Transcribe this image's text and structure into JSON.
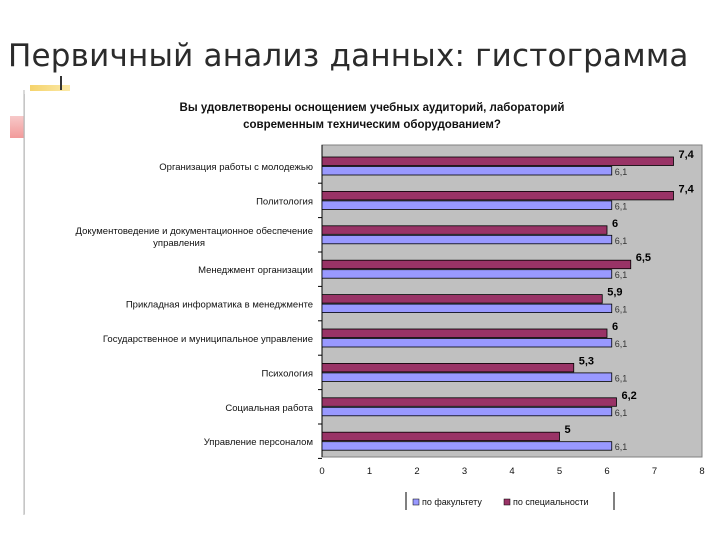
{
  "slide": {
    "title": "Первичный анализ данных: гистограмма"
  },
  "colors": {
    "plot_background": "#c0c0c0",
    "series_primary": "#9999ff",
    "series_secondary": "#993366"
  },
  "chart_data": {
    "type": "bar",
    "orientation": "horizontal",
    "title": "Вы удовлетворены оснощением учебных аудиторий, лабораторий современным техническим оборудованием?",
    "title_lines": [
      "Вы удовлетворены оснощением учебных аудиторий, лабораторий",
      "современным техническим оборудованием?"
    ],
    "categories": [
      "Организация работы с молодежью",
      "Политология",
      "Документоведение и документационное обеспечение управления",
      "Менеджмент организации",
      "Прикладная информатика в менеджменте",
      "Государственное и муниципальное управление",
      "Психология",
      "Социальная работа",
      "Управление персоналом"
    ],
    "category_lines": [
      [
        "Организация работы с молодежью"
      ],
      [
        "Политология"
      ],
      [
        "Документоведение и документационное обеспечение",
        "управления"
      ],
      [
        "Менеджмент организации"
      ],
      [
        "Прикладная информатика в менеджменте"
      ],
      [
        "Государственное и муниципальное управление"
      ],
      [
        "Психология"
      ],
      [
        "Социальная работа"
      ],
      [
        "Управление персоналом"
      ]
    ],
    "series": [
      {
        "name": "по специальности",
        "color": "#993366",
        "values": [
          7.4,
          7.4,
          6,
          6.5,
          5.9,
          6,
          5.3,
          6.2,
          5
        ],
        "labels": [
          "7,4",
          "7,4",
          "6",
          "6,5",
          "5,9",
          "6",
          "5,3",
          "6,2",
          "5"
        ]
      },
      {
        "name": "по факультету",
        "color": "#9999ff",
        "values": [
          6.1,
          6.1,
          6.1,
          6.1,
          6.1,
          6.1,
          6.1,
          6.1,
          6.1
        ],
        "labels": [
          "6,1",
          "6,1",
          "6,1",
          "6,1",
          "6,1",
          "6,1",
          "6,1",
          "6,1",
          "6,1"
        ]
      }
    ],
    "xlim": [
      0,
      8
    ],
    "xticks": [
      "0",
      "1",
      "2",
      "3",
      "4",
      "5",
      "6",
      "7",
      "8"
    ],
    "grid": false,
    "legend": {
      "position": "bottom",
      "entries": [
        {
          "name": "по факультету",
          "color": "#9999ff"
        },
        {
          "name": "по специальности",
          "color": "#993366"
        }
      ]
    }
  }
}
